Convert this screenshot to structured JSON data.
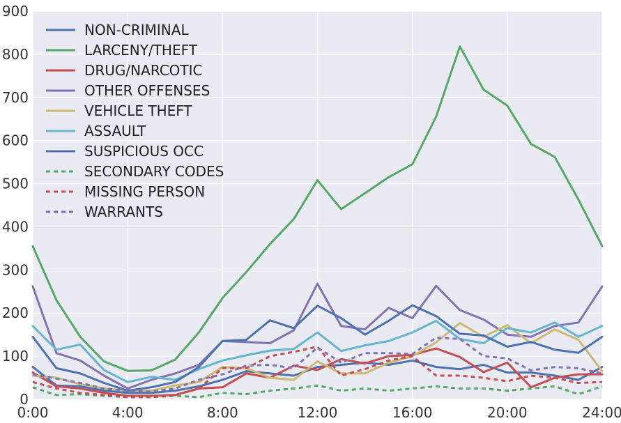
{
  "chart_data": {
    "type": "line",
    "title": "",
    "xlabel": "",
    "ylabel": "",
    "x": [
      0,
      1,
      2,
      3,
      4,
      5,
      6,
      7,
      8,
      9,
      10,
      11,
      12,
      13,
      14,
      15,
      16,
      17,
      18,
      19,
      20,
      21,
      22,
      23,
      24
    ],
    "xlim": [
      0,
      24
    ],
    "ylim": [
      0,
      900
    ],
    "x_ticks": [
      0,
      4,
      8,
      12,
      16,
      20,
      24
    ],
    "x_tick_labels": [
      "0:00",
      "4:00",
      "8:00",
      "12:00",
      "16:00",
      "20:00",
      "24:00"
    ],
    "y_ticks": [
      0,
      100,
      200,
      300,
      400,
      500,
      600,
      700,
      800,
      900
    ],
    "y_tick_labels": [
      "0",
      "100",
      "200",
      "300",
      "400",
      "500",
      "600",
      "700",
      "800",
      "900"
    ],
    "grid": true,
    "legend_position": "top-left",
    "background": "#eaeaf2",
    "series": [
      {
        "name": "NON-CRIMINAL",
        "color": "#4c72b0",
        "dash": false,
        "values": [
          75,
          32,
          30,
          20,
          15,
          15,
          20,
          30,
          45,
          65,
          60,
          55,
          75,
          80,
          85,
          80,
          90,
          75,
          70,
          80,
          62,
          62,
          55,
          45,
          75
        ]
      },
      {
        "name": "LARCENY/THEFT",
        "color": "#55a868",
        "dash": false,
        "values": [
          355,
          230,
          145,
          88,
          66,
          67,
          92,
          155,
          235,
          295,
          360,
          418,
          508,
          441,
          478,
          515,
          545,
          655,
          818,
          718,
          681,
          592,
          562,
          463,
          355
        ]
      },
      {
        "name": "DRUG/NARCOTIC",
        "color": "#c44e52",
        "dash": false,
        "values": [
          62,
          30,
          25,
          15,
          8,
          8,
          10,
          25,
          28,
          60,
          50,
          78,
          68,
          93,
          83,
          100,
          103,
          118,
          98,
          63,
          85,
          28,
          50,
          58,
          58
        ]
      },
      {
        "name": "OTHER OFFENSES",
        "color": "#8172b2",
        "dash": false,
        "values": [
          262,
          107,
          90,
          55,
          25,
          45,
          60,
          80,
          135,
          133,
          130,
          160,
          268,
          170,
          162,
          212,
          188,
          263,
          207,
          185,
          150,
          145,
          170,
          178,
          262
        ]
      },
      {
        "name": "VEHICLE THEFT",
        "color": "#ccb974",
        "dash": false,
        "values": [
          55,
          50,
          35,
          25,
          20,
          20,
          32,
          40,
          75,
          72,
          50,
          45,
          88,
          60,
          60,
          85,
          100,
          132,
          177,
          145,
          172,
          130,
          162,
          138,
          65
        ]
      },
      {
        "name": "ASSAULT",
        "color": "#64b5cd",
        "dash": false,
        "values": [
          170,
          115,
          127,
          68,
          40,
          52,
          45,
          70,
          90,
          102,
          113,
          117,
          155,
          112,
          125,
          135,
          155,
          182,
          140,
          130,
          165,
          155,
          178,
          145,
          170
        ]
      },
      {
        "name": "SUSPICIOUS OCC",
        "color": "#4c72b0",
        "dash": false,
        "values": [
          145,
          72,
          60,
          38,
          20,
          28,
          40,
          75,
          135,
          138,
          183,
          165,
          217,
          188,
          150,
          182,
          218,
          193,
          152,
          148,
          122,
          133,
          115,
          108,
          145
        ]
      },
      {
        "name": "SECONDARY CODES",
        "color": "#55a868",
        "dash": true,
        "values": [
          28,
          10,
          12,
          8,
          5,
          5,
          8,
          5,
          15,
          12,
          20,
          25,
          32,
          20,
          25,
          20,
          25,
          30,
          25,
          25,
          20,
          25,
          30,
          12,
          30
        ]
      },
      {
        "name": "MISSING PERSON",
        "color": "#c44e52",
        "dash": true,
        "values": [
          40,
          25,
          15,
          10,
          5,
          5,
          10,
          25,
          72,
          72,
          100,
          110,
          122,
          55,
          70,
          90,
          100,
          55,
          55,
          50,
          42,
          55,
          50,
          38,
          40
        ]
      },
      {
        "name": "WARRANTS",
        "color": "#8172b2",
        "dash": true,
        "values": [
          58,
          48,
          38,
          25,
          20,
          18,
          25,
          45,
          58,
          78,
          80,
          72,
          120,
          85,
          107,
          107,
          105,
          143,
          140,
          100,
          95,
          67,
          75,
          72,
          60
        ]
      }
    ]
  }
}
